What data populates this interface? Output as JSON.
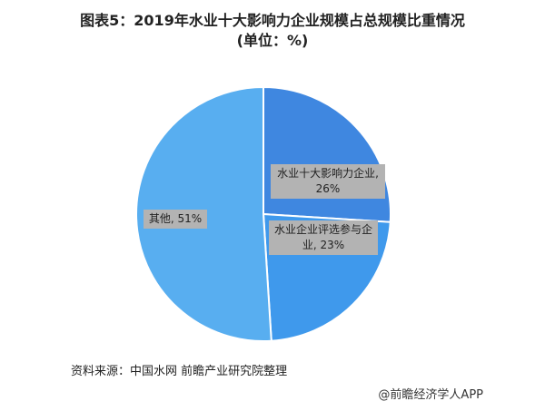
{
  "chart_data": {
    "type": "pie",
    "title": "图表5：2019年水业十大影响力企业规模占总规模比重情况(单位：%)",
    "categories": [
      "水业十大影响力企业",
      "水业企业评选参与企业",
      "其他"
    ],
    "values": [
      26,
      23,
      51
    ],
    "value_labels": [
      "水业十大影响力企业, 26%",
      "水业企业评选参与企业, 23%",
      "其他, 51%"
    ],
    "colors": [
      "#3f87e0",
      "#3f99ec",
      "#58aef0"
    ],
    "source": "资料来源：中国水网 前瞻产业研究院整理",
    "credit": "@前瞻经济学人APP"
  }
}
